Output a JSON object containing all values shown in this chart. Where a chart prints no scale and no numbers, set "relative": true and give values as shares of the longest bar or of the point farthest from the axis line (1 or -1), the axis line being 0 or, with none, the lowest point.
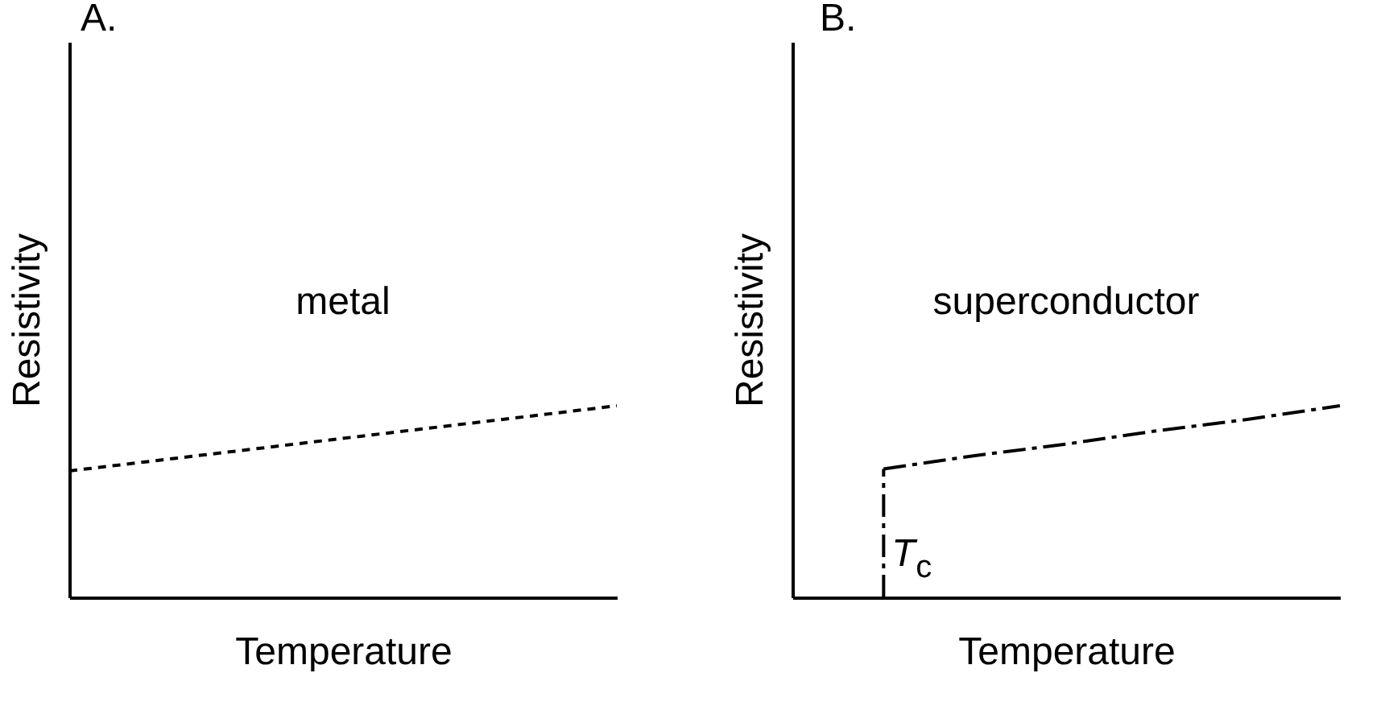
{
  "chart_data": [
    {
      "type": "line",
      "title": "A.",
      "xlabel": "Temperature",
      "ylabel": "Resistivity",
      "relative": true,
      "tick_labels": false,
      "grid": false,
      "marker": "none",
      "categories": [
        null,
        null
      ],
      "series": [
        {
          "color": "#000000",
          "line_style": "dotted",
          "values": [
            0.66,
            1
          ]
        }
      ],
      "annotations": [
        "metal"
      ]
    },
    {
      "type": "line",
      "title": "B.",
      "xlabel": "Temperature",
      "ylabel": "Resistivity",
      "relative": true,
      "tick_labels": false,
      "grid": false,
      "marker": "none",
      "categories": [
        null,
        null,
        null,
        null,
        null,
        null,
        null
      ],
      "series": [
        {
          "color": "#000000",
          "line_style": "dashed",
          "values": [
            null,
            0.67,
            0.74,
            0.8,
            0.87,
            0.93,
            1
          ]
        }
      ],
      "annotations": [
        "superconductor",
        "T$_{c}$"
      ]
    }
  ]
}
